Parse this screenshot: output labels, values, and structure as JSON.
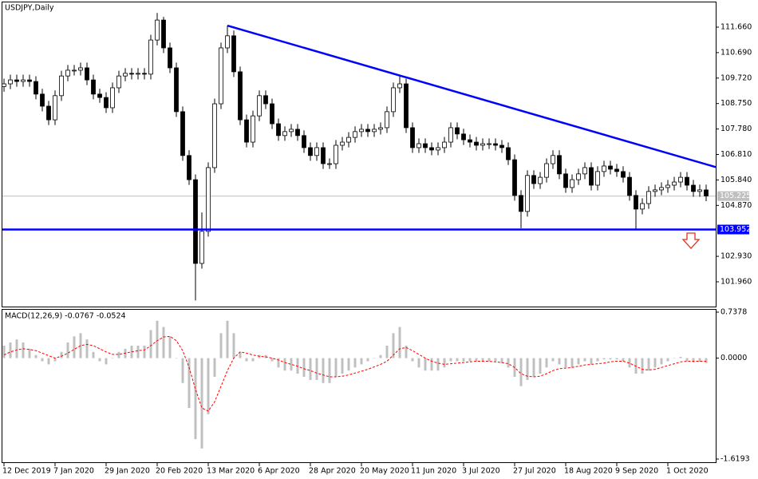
{
  "chart_data": [
    {
      "type": "candlestick",
      "title": "USDJPY,Daily",
      "categories": [
        "12 Dec 2019",
        null,
        null,
        null,
        null,
        null,
        null,
        null,
        "7 Jan 2020",
        null,
        null,
        null,
        null,
        null,
        null,
        null,
        "29 Jan 2020",
        null,
        null,
        null,
        null,
        null,
        null,
        null,
        "20 Feb 2020",
        null,
        null,
        null,
        null,
        null,
        null,
        null,
        "13 Mar 2020",
        null,
        null,
        null,
        null,
        null,
        null,
        null,
        "6 Apr 2020",
        null,
        null,
        null,
        null,
        null,
        null,
        null,
        "28 Apr 2020",
        null,
        null,
        null,
        null,
        null,
        null,
        null,
        "20 May 2020",
        null,
        null,
        null,
        null,
        null,
        null,
        null,
        "11 Jun 2020",
        null,
        null,
        null,
        null,
        null,
        null,
        null,
        "3 Jul 2020",
        null,
        null,
        null,
        null,
        null,
        null,
        null,
        "27 Jul 2020",
        null,
        null,
        null,
        null,
        null,
        null,
        null,
        "18 Aug 2020",
        null,
        null,
        null,
        null,
        null,
        null,
        null,
        "9 Sep 2020",
        null,
        null,
        null,
        null,
        null,
        null,
        null,
        "1 Oct 2020",
        null,
        null,
        null,
        null,
        null,
        null
      ],
      "open": [
        109.4,
        109.5,
        109.65,
        109.59,
        109.65,
        109.59,
        109.11,
        108.65,
        108.13,
        109.05,
        109.8,
        110.02,
        110.02,
        110.11,
        109.65,
        109.11,
        108.98,
        108.59,
        109.35,
        109.8,
        109.9,
        109.87,
        109.9,
        109.87,
        111.17,
        111.93,
        110.87,
        110.11,
        108.44,
        106.77,
        105.85,
        102.66,
        103.88,
        106.31,
        108.74,
        110.87,
        111.33,
        109.96,
        108.13,
        107.28,
        108.28,
        109.05,
        108.74,
        107.98,
        107.53,
        107.68,
        107.77,
        107.53,
        107.07,
        106.77,
        107.07,
        106.46,
        106.46,
        107.16,
        107.28,
        107.46,
        107.68,
        107.77,
        107.68,
        107.77,
        107.83,
        108.44,
        109.35,
        109.5,
        107.83,
        107.07,
        107.22,
        107.07,
        106.98,
        107.07,
        107.28,
        107.83,
        107.59,
        107.37,
        107.28,
        107.16,
        107.22,
        107.22,
        107.16,
        107.07,
        106.61,
        105.25,
        104.64,
        106.01,
        105.7,
        105.94,
        106.46,
        106.77,
        106.07,
        105.55,
        105.85,
        106.07,
        106.31,
        105.64,
        106.16,
        106.37,
        106.25,
        106.16,
        105.94,
        105.25,
        104.73,
        104.94,
        105.4,
        105.46,
        105.55,
        105.64,
        105.76,
        105.94,
        105.64,
        105.4,
        105.46
      ],
      "high": [
        109.7,
        109.85,
        109.85,
        109.85,
        109.85,
        109.79,
        109.31,
        108.85,
        109.25,
        110.0,
        110.22,
        110.22,
        110.31,
        110.31,
        109.85,
        109.31,
        109.18,
        109.55,
        110.0,
        110.1,
        110.1,
        110.1,
        110.1,
        111.37,
        112.2,
        112.05,
        111.07,
        110.31,
        108.64,
        106.97,
        106.05,
        104.6,
        106.51,
        108.94,
        111.07,
        111.72,
        111.53,
        110.16,
        108.33,
        108.48,
        109.25,
        109.25,
        108.94,
        108.18,
        107.88,
        107.97,
        107.97,
        107.73,
        107.27,
        107.27,
        107.27,
        106.66,
        107.36,
        107.48,
        107.66,
        107.88,
        107.97,
        107.97,
        107.97,
        108.03,
        108.64,
        109.55,
        109.8,
        109.7,
        108.03,
        107.42,
        107.42,
        107.27,
        107.27,
        107.48,
        108.03,
        108.03,
        107.79,
        107.57,
        107.48,
        107.42,
        107.42,
        107.42,
        107.36,
        107.27,
        106.81,
        105.45,
        106.21,
        106.21,
        106.14,
        106.66,
        106.97,
        106.97,
        106.27,
        106.05,
        106.27,
        106.51,
        106.51,
        106.36,
        106.57,
        106.57,
        106.45,
        106.36,
        106.14,
        105.45,
        105.14,
        105.6,
        105.66,
        105.75,
        105.84,
        105.96,
        106.14,
        106.14,
        105.84,
        105.66,
        105.66
      ],
      "low": [
        109.2,
        109.3,
        109.39,
        109.39,
        109.39,
        108.91,
        108.45,
        107.93,
        107.93,
        108.85,
        109.6,
        109.82,
        109.82,
        109.45,
        108.91,
        108.78,
        108.39,
        108.39,
        109.15,
        109.6,
        109.67,
        109.67,
        109.67,
        109.67,
        110.97,
        110.67,
        109.91,
        108.24,
        106.57,
        105.65,
        101.25,
        102.46,
        103.68,
        106.11,
        108.54,
        110.67,
        109.76,
        107.93,
        107.08,
        107.08,
        108.08,
        108.54,
        107.78,
        107.33,
        107.33,
        107.48,
        107.33,
        106.87,
        106.57,
        106.57,
        106.26,
        106.26,
        106.26,
        106.96,
        107.08,
        107.26,
        107.48,
        107.48,
        107.48,
        107.57,
        107.63,
        108.24,
        109.15,
        107.63,
        106.87,
        106.87,
        106.87,
        106.78,
        106.78,
        106.87,
        107.08,
        107.39,
        107.17,
        107.08,
        106.96,
        106.96,
        107.02,
        106.96,
        106.87,
        106.41,
        105.05,
        104.0,
        104.44,
        105.5,
        105.5,
        105.74,
        106.26,
        105.87,
        105.35,
        105.35,
        105.65,
        105.87,
        105.44,
        105.44,
        105.96,
        106.05,
        105.96,
        105.74,
        105.05,
        103.95,
        104.53,
        104.74,
        105.2,
        105.26,
        105.35,
        105.44,
        105.56,
        105.44,
        105.2,
        105.2,
        105.03
      ],
      "close": [
        109.5,
        109.65,
        109.59,
        109.65,
        109.59,
        109.11,
        108.65,
        108.13,
        109.05,
        109.8,
        110.02,
        110.02,
        110.11,
        109.65,
        109.11,
        108.98,
        108.59,
        109.35,
        109.8,
        109.9,
        109.87,
        109.9,
        109.87,
        111.17,
        111.93,
        110.87,
        110.11,
        108.44,
        106.77,
        105.85,
        102.66,
        103.88,
        106.31,
        108.74,
        110.87,
        111.33,
        109.96,
        108.13,
        107.28,
        108.28,
        109.05,
        108.74,
        107.98,
        107.53,
        107.68,
        107.77,
        107.53,
        107.07,
        106.77,
        107.07,
        106.46,
        106.46,
        107.16,
        107.28,
        107.46,
        107.68,
        107.77,
        107.68,
        107.77,
        107.83,
        108.44,
        109.35,
        109.5,
        107.83,
        107.07,
        107.22,
        107.07,
        106.98,
        107.07,
        107.28,
        107.83,
        107.59,
        107.37,
        107.28,
        107.16,
        107.22,
        107.22,
        107.16,
        107.07,
        106.61,
        105.25,
        104.64,
        106.01,
        105.7,
        105.94,
        106.46,
        106.77,
        106.07,
        105.55,
        105.85,
        106.07,
        106.31,
        105.64,
        106.16,
        106.37,
        106.25,
        106.16,
        105.94,
        105.25,
        104.73,
        104.94,
        105.4,
        105.46,
        105.55,
        105.64,
        105.76,
        105.94,
        105.64,
        105.4,
        105.46,
        105.23
      ],
      "ylim": [
        101.017,
        112.633
      ],
      "yticks": [
        {
          "value": 111.66,
          "label": "111.660"
        },
        {
          "value": 110.69,
          "label": "110.690"
        },
        {
          "value": 109.72,
          "label": "109.720"
        },
        {
          "value": 108.75,
          "label": "108.750"
        },
        {
          "value": 107.78,
          "label": "107.780"
        },
        {
          "value": 106.81,
          "label": "106.810"
        },
        {
          "value": 105.84,
          "label": "105.840"
        },
        {
          "value": 104.87,
          "label": "104.870"
        },
        {
          "value": 102.93,
          "label": "102.930"
        },
        {
          "value": 101.96,
          "label": "101.960"
        }
      ],
      "price_line": {
        "value": 105.225,
        "label": "105.225",
        "color": "#c0c0c0"
      },
      "support_line": {
        "value": 103.952,
        "label": "103.952",
        "color": "#0000ff"
      },
      "trendline": {
        "x": [
          35,
          111.5
        ],
        "y": [
          111.72,
          106.33
        ],
        "color": "#0000ff"
      }
    },
    {
      "type": "macd",
      "title": "MACD(12,26,9) -0.0767 -0.0524",
      "ylim": [
        -1.6193,
        0.7378
      ],
      "yticks": [
        0.7378,
        {
          "value": 0,
          "label": "0.0000"
        },
        -1.6193
      ],
      "histogram": {
        "color": "#c0c0c0",
        "values": [
          0.2,
          0.25,
          0.3,
          0.25,
          0.15,
          0.05,
          -0.05,
          -0.1,
          -0.05,
          0.1,
          0.25,
          0.35,
          0.4,
          0.3,
          0.1,
          -0.05,
          -0.1,
          0.0,
          0.1,
          0.15,
          0.2,
          0.2,
          0.2,
          0.45,
          0.6,
          0.5,
          0.35,
          0.0,
          -0.4,
          -0.8,
          -1.3,
          -1.45,
          -0.9,
          -0.3,
          0.4,
          0.6,
          0.4,
          0.1,
          -0.05,
          -0.05,
          0.05,
          0.05,
          -0.05,
          -0.15,
          -0.2,
          -0.2,
          -0.25,
          -0.3,
          -0.35,
          -0.35,
          -0.4,
          -0.4,
          -0.3,
          -0.25,
          -0.2,
          -0.15,
          -0.1,
          -0.05,
          0.0,
          0.05,
          0.2,
          0.4,
          0.5,
          0.2,
          -0.05,
          -0.15,
          -0.2,
          -0.2,
          -0.2,
          -0.15,
          -0.05,
          -0.05,
          -0.05,
          -0.05,
          -0.05,
          -0.05,
          -0.05,
          -0.05,
          -0.08,
          -0.15,
          -0.3,
          -0.45,
          -0.35,
          -0.3,
          -0.25,
          -0.15,
          -0.05,
          -0.1,
          -0.15,
          -0.15,
          -0.1,
          -0.05,
          -0.1,
          -0.05,
          -0.02,
          -0.02,
          -0.02,
          -0.05,
          -0.15,
          -0.25,
          -0.25,
          -0.2,
          -0.15,
          -0.1,
          -0.05,
          0.0,
          0.02,
          -0.05,
          -0.07,
          -0.06,
          -0.08
        ]
      },
      "signal": {
        "color": "#ff0000",
        "values": [
          0.05,
          0.1,
          0.13,
          0.15,
          0.14,
          0.12,
          0.08,
          0.04,
          0.0,
          0.03,
          0.08,
          0.14,
          0.2,
          0.22,
          0.2,
          0.15,
          0.1,
          0.06,
          0.06,
          0.08,
          0.1,
          0.12,
          0.13,
          0.2,
          0.28,
          0.34,
          0.35,
          0.28,
          0.12,
          -0.15,
          -0.5,
          -0.8,
          -0.85,
          -0.7,
          -0.45,
          -0.2,
          0.0,
          0.1,
          0.08,
          0.05,
          0.03,
          0.02,
          0.0,
          -0.03,
          -0.07,
          -0.1,
          -0.13,
          -0.17,
          -0.2,
          -0.24,
          -0.27,
          -0.3,
          -0.3,
          -0.29,
          -0.27,
          -0.24,
          -0.21,
          -0.18,
          -0.14,
          -0.1,
          -0.05,
          0.05,
          0.15,
          0.17,
          0.12,
          0.06,
          0.0,
          -0.05,
          -0.08,
          -0.1,
          -0.09,
          -0.08,
          -0.07,
          -0.06,
          -0.05,
          -0.05,
          -0.05,
          -0.06,
          -0.07,
          -0.09,
          -0.15,
          -0.25,
          -0.29,
          -0.3,
          -0.29,
          -0.25,
          -0.2,
          -0.17,
          -0.16,
          -0.15,
          -0.13,
          -0.11,
          -0.1,
          -0.09,
          -0.08,
          -0.06,
          -0.05,
          -0.05,
          -0.08,
          -0.13,
          -0.18,
          -0.19,
          -0.18,
          -0.15,
          -0.12,
          -0.09,
          -0.06,
          -0.05,
          -0.05,
          -0.05,
          -0.05
        ]
      }
    }
  ]
}
